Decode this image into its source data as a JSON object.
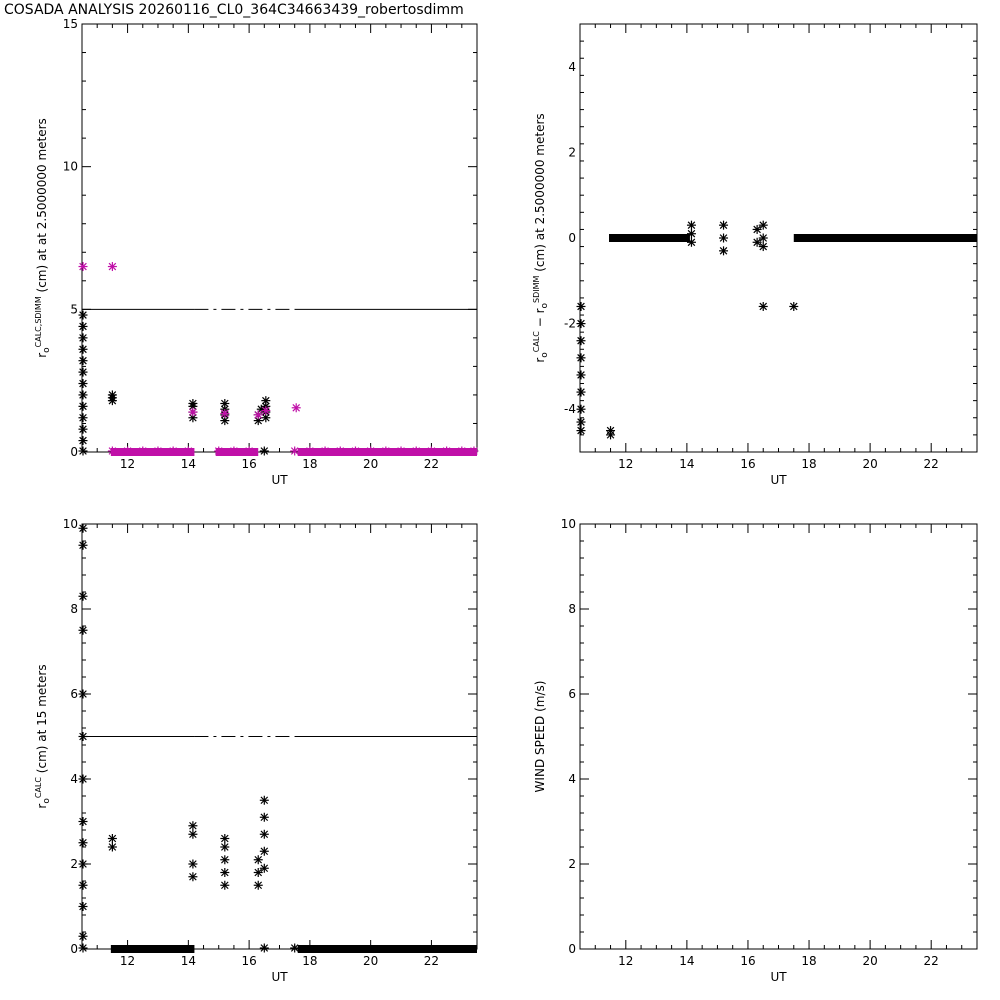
{
  "title": "COSADA ANALYSIS  20260116_CL0_364C34663439_robertosdimm",
  "colors": {
    "black": "#000000",
    "magenta": "#c010a8"
  },
  "chart_data": [
    {
      "type": "scatter",
      "ylabel": {
        "base": "r",
        "sub": "o",
        "sup": "CALC,SDIMM",
        "tail": " (cm)  at  at 2.5000000 meters"
      },
      "xlabel": "UT",
      "xlim": [
        10.5,
        23.5
      ],
      "ylim": [
        0,
        15
      ],
      "xticks": [
        12,
        14,
        16,
        18,
        20,
        22
      ],
      "yticks": [
        0,
        5,
        10,
        15
      ],
      "reference_line": 5,
      "series": [
        {
          "color": "black",
          "points": [
            [
              10.52,
              0.0
            ],
            [
              10.52,
              0.4
            ],
            [
              10.52,
              0.8
            ],
            [
              10.52,
              1.2
            ],
            [
              10.52,
              1.6
            ],
            [
              10.52,
              2.0
            ],
            [
              10.52,
              2.4
            ],
            [
              10.52,
              2.8
            ],
            [
              10.52,
              3.2
            ],
            [
              10.52,
              3.6
            ],
            [
              10.52,
              4.0
            ],
            [
              10.52,
              4.4
            ],
            [
              10.52,
              4.8
            ],
            [
              11.5,
              1.8
            ],
            [
              11.5,
              1.9
            ],
            [
              11.5,
              2.0
            ],
            [
              14.15,
              1.2
            ],
            [
              14.15,
              1.4
            ],
            [
              14.15,
              1.6
            ],
            [
              14.15,
              1.7
            ],
            [
              15.2,
              1.1
            ],
            [
              15.2,
              1.3
            ],
            [
              15.2,
              1.5
            ],
            [
              15.2,
              1.7
            ],
            [
              16.3,
              1.1
            ],
            [
              16.3,
              1.3
            ],
            [
              16.4,
              1.5
            ],
            [
              16.55,
              1.2
            ],
            [
              16.55,
              1.4
            ],
            [
              16.55,
              1.6
            ],
            [
              16.55,
              1.8
            ],
            [
              16.5,
              0.0
            ]
          ]
        },
        {
          "color": "magenta",
          "points": [
            [
              10.52,
              6.5
            ],
            [
              11.5,
              6.5
            ],
            [
              14.15,
              1.4
            ],
            [
              15.2,
              1.35
            ],
            [
              16.3,
              1.3
            ],
            [
              16.55,
              1.45
            ],
            [
              17.55,
              1.55
            ],
            [
              11.5,
              0.0
            ],
            [
              12.0,
              0.0
            ],
            [
              12.5,
              0.0
            ],
            [
              13.0,
              0.0
            ],
            [
              13.5,
              0.0
            ],
            [
              14.0,
              0.0
            ],
            [
              15.0,
              0.0
            ],
            [
              15.5,
              0.0
            ],
            [
              16.0,
              0.0
            ],
            [
              17.5,
              0.0
            ],
            [
              18.0,
              0.0
            ],
            [
              18.5,
              0.0
            ],
            [
              19.0,
              0.0
            ],
            [
              19.5,
              0.0
            ],
            [
              20.0,
              0.0
            ],
            [
              20.5,
              0.0
            ],
            [
              21.0,
              0.0
            ],
            [
              21.5,
              0.0
            ],
            [
              22.0,
              0.0
            ],
            [
              22.5,
              0.0
            ],
            [
              23.0,
              0.0
            ],
            [
              23.4,
              0.0
            ]
          ]
        }
      ],
      "bands": [
        {
          "color": "magenta",
          "x0": 11.45,
          "x1": 14.2,
          "y": 0.0
        },
        {
          "color": "magenta",
          "x0": 14.9,
          "x1": 16.3,
          "y": 0.0
        },
        {
          "color": "magenta",
          "x0": 17.6,
          "x1": 23.5,
          "y": 0.0
        }
      ]
    },
    {
      "type": "scatter",
      "ylabel": {
        "base": "r",
        "sub": "o",
        "sup": "CALC",
        "mid": " − r",
        "sub2": "o",
        "sup2": "SDIMM",
        "tail": " (cm)  at 2.5000000 meters"
      },
      "xlabel": "UT",
      "xlim": [
        10.5,
        23.5
      ],
      "ylim": [
        -5,
        5
      ],
      "xticks": [
        12,
        14,
        16,
        18,
        20,
        22
      ],
      "yticks": [
        -4,
        -2,
        0,
        2,
        4
      ],
      "series": [
        {
          "color": "black",
          "points": [
            [
              10.52,
              -1.6
            ],
            [
              10.52,
              -2.0
            ],
            [
              10.52,
              -2.4
            ],
            [
              10.52,
              -2.8
            ],
            [
              10.52,
              -3.2
            ],
            [
              10.52,
              -3.6
            ],
            [
              10.52,
              -4.0
            ],
            [
              10.52,
              -4.3
            ],
            [
              10.52,
              -4.5
            ],
            [
              11.5,
              -4.5
            ],
            [
              11.5,
              -4.6
            ],
            [
              14.15,
              0.3
            ],
            [
              14.15,
              0.1
            ],
            [
              14.15,
              -0.1
            ],
            [
              15.2,
              0.3
            ],
            [
              15.2,
              0.0
            ],
            [
              15.2,
              -0.3
            ],
            [
              16.3,
              0.2
            ],
            [
              16.3,
              -0.1
            ],
            [
              16.5,
              0.3
            ],
            [
              16.5,
              0.0
            ],
            [
              16.5,
              -0.2
            ],
            [
              16.5,
              -1.6
            ],
            [
              17.5,
              -1.6
            ]
          ]
        }
      ],
      "bands": [
        {
          "color": "black",
          "x0": 11.45,
          "x1": 14.1,
          "y": 0.0
        },
        {
          "color": "black",
          "x0": 17.5,
          "x1": 23.5,
          "y": 0.0
        }
      ]
    },
    {
      "type": "scatter",
      "ylabel": {
        "base": "r",
        "sub": "o",
        "sup": "CALC",
        "tail": " (cm) at 15  meters"
      },
      "xlabel": "UT",
      "xlim": [
        10.5,
        23.5
      ],
      "ylim": [
        0,
        10
      ],
      "xticks": [
        12,
        14,
        16,
        18,
        20,
        22
      ],
      "yticks": [
        0,
        2,
        4,
        6,
        8,
        10
      ],
      "reference_line": 5,
      "series": [
        {
          "color": "black",
          "points": [
            [
              10.52,
              0.0
            ],
            [
              10.52,
              0.3
            ],
            [
              10.52,
              1.0
            ],
            [
              10.52,
              1.5
            ],
            [
              10.52,
              2.0
            ],
            [
              10.52,
              2.5
            ],
            [
              10.52,
              3.0
            ],
            [
              10.52,
              4.0
            ],
            [
              10.52,
              5.0
            ],
            [
              10.52,
              6.0
            ],
            [
              10.52,
              7.5
            ],
            [
              10.52,
              8.3
            ],
            [
              10.52,
              9.5
            ],
            [
              10.52,
              9.9
            ],
            [
              11.5,
              2.4
            ],
            [
              11.5,
              2.6
            ],
            [
              14.15,
              1.7
            ],
            [
              14.15,
              2.0
            ],
            [
              14.15,
              2.7
            ],
            [
              14.15,
              2.9
            ],
            [
              15.2,
              1.5
            ],
            [
              15.2,
              1.8
            ],
            [
              15.2,
              2.1
            ],
            [
              15.2,
              2.4
            ],
            [
              15.2,
              2.6
            ],
            [
              16.3,
              1.5
            ],
            [
              16.3,
              1.8
            ],
            [
              16.3,
              2.1
            ],
            [
              16.5,
              1.9
            ],
            [
              16.5,
              2.3
            ],
            [
              16.5,
              2.7
            ],
            [
              16.5,
              3.1
            ],
            [
              16.5,
              3.5
            ],
            [
              16.5,
              0.0
            ],
            [
              17.5,
              0.0
            ]
          ]
        }
      ],
      "bands": [
        {
          "color": "black",
          "x0": 11.45,
          "x1": 14.2,
          "y": 0.0
        },
        {
          "color": "black",
          "x0": 17.6,
          "x1": 23.5,
          "y": 0.0
        }
      ]
    },
    {
      "type": "scatter",
      "ylabel": {
        "base": "WIND SPEED (m/s)"
      },
      "xlabel": "UT",
      "xlim": [
        10.5,
        23.5
      ],
      "ylim": [
        0,
        10
      ],
      "xticks": [
        12,
        14,
        16,
        18,
        20,
        22
      ],
      "yticks": [
        0,
        2,
        4,
        6,
        8,
        10
      ],
      "series": []
    }
  ]
}
